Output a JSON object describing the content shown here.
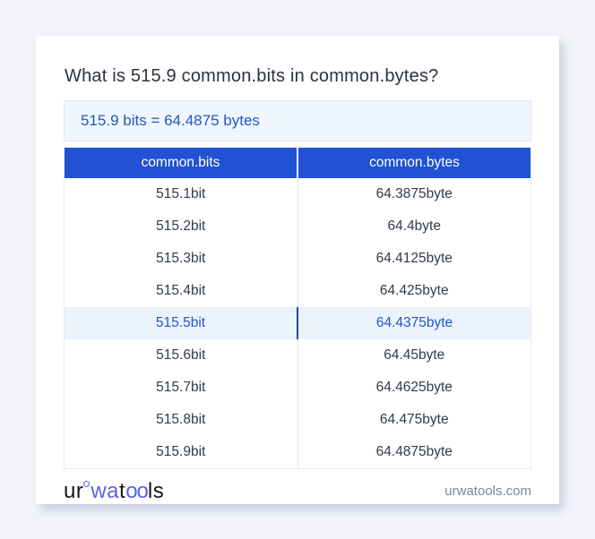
{
  "page": {
    "title": "What is 515.9 common.bits in common.bytes?",
    "result": "515.9 bits = 64.4875 bytes"
  },
  "table": {
    "headers": [
      "common.bits",
      "common.bytes"
    ],
    "rows": [
      {
        "bits": "515.1bit",
        "bytes": "64.3875byte",
        "highlight": false
      },
      {
        "bits": "515.2bit",
        "bytes": "64.4byte",
        "highlight": false
      },
      {
        "bits": "515.3bit",
        "bytes": "64.4125byte",
        "highlight": false
      },
      {
        "bits": "515.4bit",
        "bytes": "64.425byte",
        "highlight": false
      },
      {
        "bits": "515.5bit",
        "bytes": "64.4375byte",
        "highlight": true
      },
      {
        "bits": "515.6bit",
        "bytes": "64.45byte",
        "highlight": false
      },
      {
        "bits": "515.7bit",
        "bytes": "64.4625byte",
        "highlight": false
      },
      {
        "bits": "515.8bit",
        "bytes": "64.475byte",
        "highlight": false
      },
      {
        "bits": "515.9bit",
        "bytes": "64.4875byte",
        "highlight": false
      }
    ]
  },
  "footer": {
    "logo": {
      "ur": "ur",
      "wa": "wa",
      "t": "t",
      "oo": "oo",
      "ls": "ls"
    },
    "site": "urwatools.com"
  },
  "colors": {
    "page-bg": "#f2f4f9",
    "card-bg": "#ffffff",
    "header-bg": "#2152d3",
    "accent-text": "#2456c4",
    "result-bg": "#eff6fd",
    "result-border": "#dce8f8",
    "highlight-bg": "#ebf3fd",
    "highlight-divider": "#1d4a9e",
    "divider": "#e3e6ec",
    "table-border": "#e9ecf1",
    "cell-text": "#333b49",
    "title-text": "#2d333d",
    "footer-text": "#7e8694",
    "logo-blue": "#5b63e8",
    "logo-dark": "#15161a"
  }
}
